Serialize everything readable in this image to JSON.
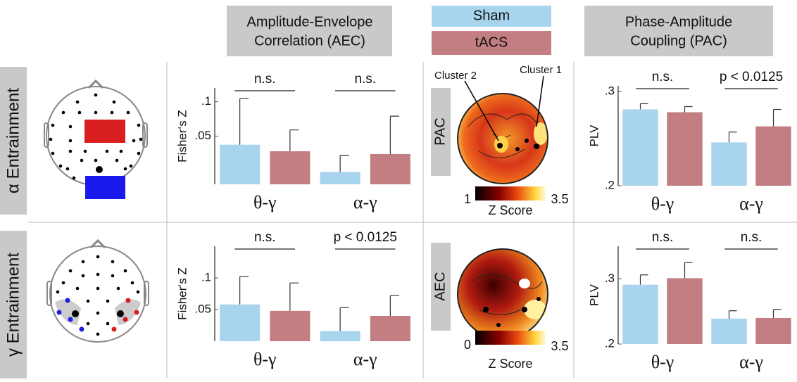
{
  "headers": [
    {
      "lines": [
        "Amplitude-Envelope",
        "Correlation (AEC)"
      ]
    },
    {
      "lines": [
        "Phase-Amplitude",
        "Coupling (PAC)"
      ]
    }
  ],
  "row_labels": [
    "α Entrainment",
    "γ Entrainment"
  ],
  "topomaps": [
    {
      "label": "PAC",
      "clusters": [
        "Cluster 2",
        "Cluster 1"
      ],
      "colorbar": {
        "min": 1,
        "max": 3.5,
        "title": "Z Score"
      }
    },
    {
      "label": "AEC",
      "colorbar": {
        "min": 0,
        "max": 3.5,
        "title": "Z Score"
      }
    }
  ],
  "chart_data": [
    {
      "type": "bar",
      "y_label": "Fisher‘s Z",
      "categories": [
        "θ-γ",
        "α-γ"
      ],
      "annotations": [
        "n.s.",
        "n.s."
      ],
      "ylim": [
        -0.02,
        0.12
      ],
      "yticks": [
        {
          "value": 0.05,
          "label": ".05"
        },
        {
          "value": 0.1,
          "label": ".1"
        }
      ],
      "series": [
        {
          "name": "Sham",
          "color": "#a9d4ee",
          "values": [
            0.0375,
            -0.002
          ],
          "errors": [
            0.067,
            0.024
          ]
        },
        {
          "name": "tACS",
          "color": "#c27e82",
          "values": [
            0.028,
            0.024
          ],
          "errors": [
            0.031,
            0.055
          ]
        }
      ]
    },
    {
      "type": "bar",
      "y_label": "PLV",
      "categories": [
        "θ-γ",
        "α-γ"
      ],
      "annotations": [
        "n.s.",
        "p < 0.0125"
      ],
      "ylim": [
        0.2,
        0.306
      ],
      "yticks": [
        {
          "value": 0.2,
          "label": ".2"
        },
        {
          "value": 0.3,
          "label": ".3"
        }
      ],
      "series": [
        {
          "name": "Sham",
          "color": "#a9d4ee",
          "values": [
            0.281,
            0.246
          ],
          "errors": [
            0.006,
            0.011
          ]
        },
        {
          "name": "tACS",
          "color": "#c27e82",
          "values": [
            0.278,
            0.263
          ],
          "errors": [
            0.006,
            0.018
          ]
        }
      ]
    },
    {
      "type": "bar",
      "y_label": "Fisher‘s Z",
      "categories": [
        "θ-γ",
        "α-γ"
      ],
      "annotations": [
        "n.s.",
        "p < 0.0125"
      ],
      "ylim": [
        0,
        0.15
      ],
      "yticks": [
        {
          "value": 0.05,
          "label": ".05"
        },
        {
          "value": 0.1,
          "label": ".1"
        }
      ],
      "series": [
        {
          "name": "Sham",
          "color": "#a9d4ee",
          "values": [
            0.058,
            0.016
          ],
          "errors": [
            0.044,
            0.037
          ]
        },
        {
          "name": "tACS",
          "color": "#c27e82",
          "values": [
            0.048,
            0.04
          ],
          "errors": [
            0.044,
            0.032
          ]
        }
      ]
    },
    {
      "type": "bar",
      "y_label": "PLV",
      "categories": [
        "θ-γ",
        "α-γ"
      ],
      "annotations": [
        "n.s.",
        "n.s."
      ],
      "ylim": [
        0.2,
        0.35
      ],
      "yticks": [
        {
          "value": 0.2,
          "label": ".2"
        },
        {
          "value": 0.3,
          "label": ".3"
        }
      ],
      "series": [
        {
          "name": "Sham",
          "color": "#a9d4ee",
          "values": [
            0.291,
            0.239
          ],
          "errors": [
            0.015,
            0.012
          ]
        },
        {
          "name": "tACS",
          "color": "#c27e82",
          "values": [
            0.301,
            0.24
          ],
          "errors": [
            0.024,
            0.013
          ]
        }
      ]
    }
  ]
}
